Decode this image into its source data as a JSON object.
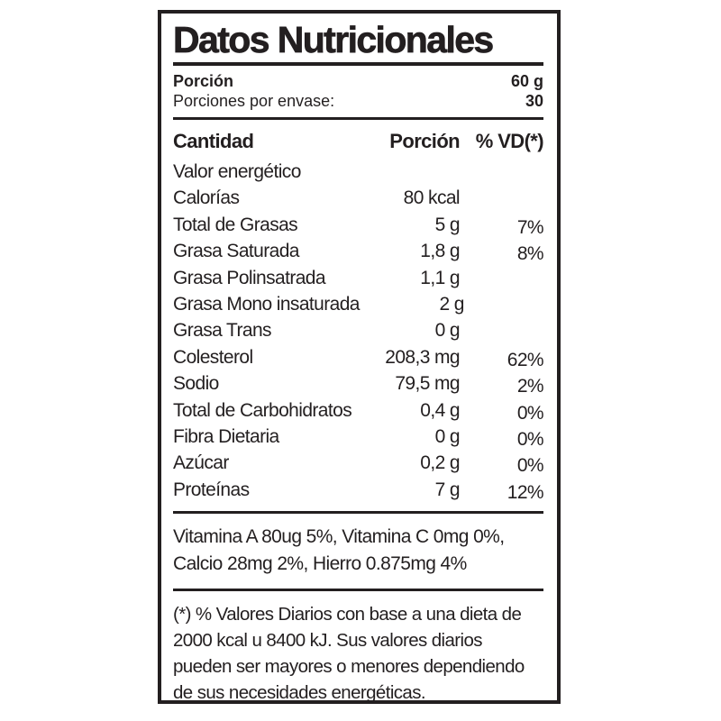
{
  "label": {
    "title": "Datos Nutricionales",
    "serving": {
      "portion_label": "Porción",
      "portion_value": "60 g",
      "servings_label": "Porciones por envase:",
      "servings_value": "30"
    },
    "table": {
      "headers": {
        "amount": "Cantidad",
        "portion": "Porción",
        "daily_value": "% VD(*)"
      },
      "rows": [
        {
          "name": "Valor energético",
          "value": "",
          "dv": ""
        },
        {
          "name": "Calorías",
          "value": "80 kcal",
          "dv": ""
        },
        {
          "name": "Total de Grasas",
          "value": "5 g",
          "dv": "7%"
        },
        {
          "name": "Grasa Saturada",
          "value": "1,8 g",
          "dv": "8%"
        },
        {
          "name": "Grasa Polinsatrada",
          "value": "1,1 g",
          "dv": ""
        },
        {
          "name": "Grasa Mono insaturada",
          "value": "2 g",
          "dv": ""
        },
        {
          "name": "Grasa Trans",
          "value": "0 g",
          "dv": ""
        },
        {
          "name": "Colesterol",
          "value": "208,3 mg",
          "dv": "62%"
        },
        {
          "name": "Sodio",
          "value": "79,5 mg",
          "dv": "2%"
        },
        {
          "name": "Total de Carbohidratos",
          "value": "0,4 g",
          "dv": "0%"
        },
        {
          "name": "Fibra Dietaria",
          "value": "0 g",
          "dv": "0%"
        },
        {
          "name": "Azúcar",
          "value": "0,2 g",
          "dv": "0%"
        },
        {
          "name": "Proteínas",
          "value": "7 g",
          "dv": "12%"
        }
      ]
    },
    "vitamins": {
      "lines": [
        "Vitamina A 80ug 5%, Vitamina C 0mg 0%,",
        "Calcio 28mg 2%, Hierro 0.875mg 4%"
      ]
    },
    "footnote": {
      "lines": [
        "(*) % Valores Diarios con base a una dieta de",
        "2000 kcal u 8400 kJ.  Sus valores diarios",
        "pueden ser mayores o menores dependiendo",
        "de sus necesidades energéticas."
      ]
    },
    "colors": {
      "text": "#231f20",
      "border": "#231f20",
      "background": "#ffffff"
    }
  }
}
